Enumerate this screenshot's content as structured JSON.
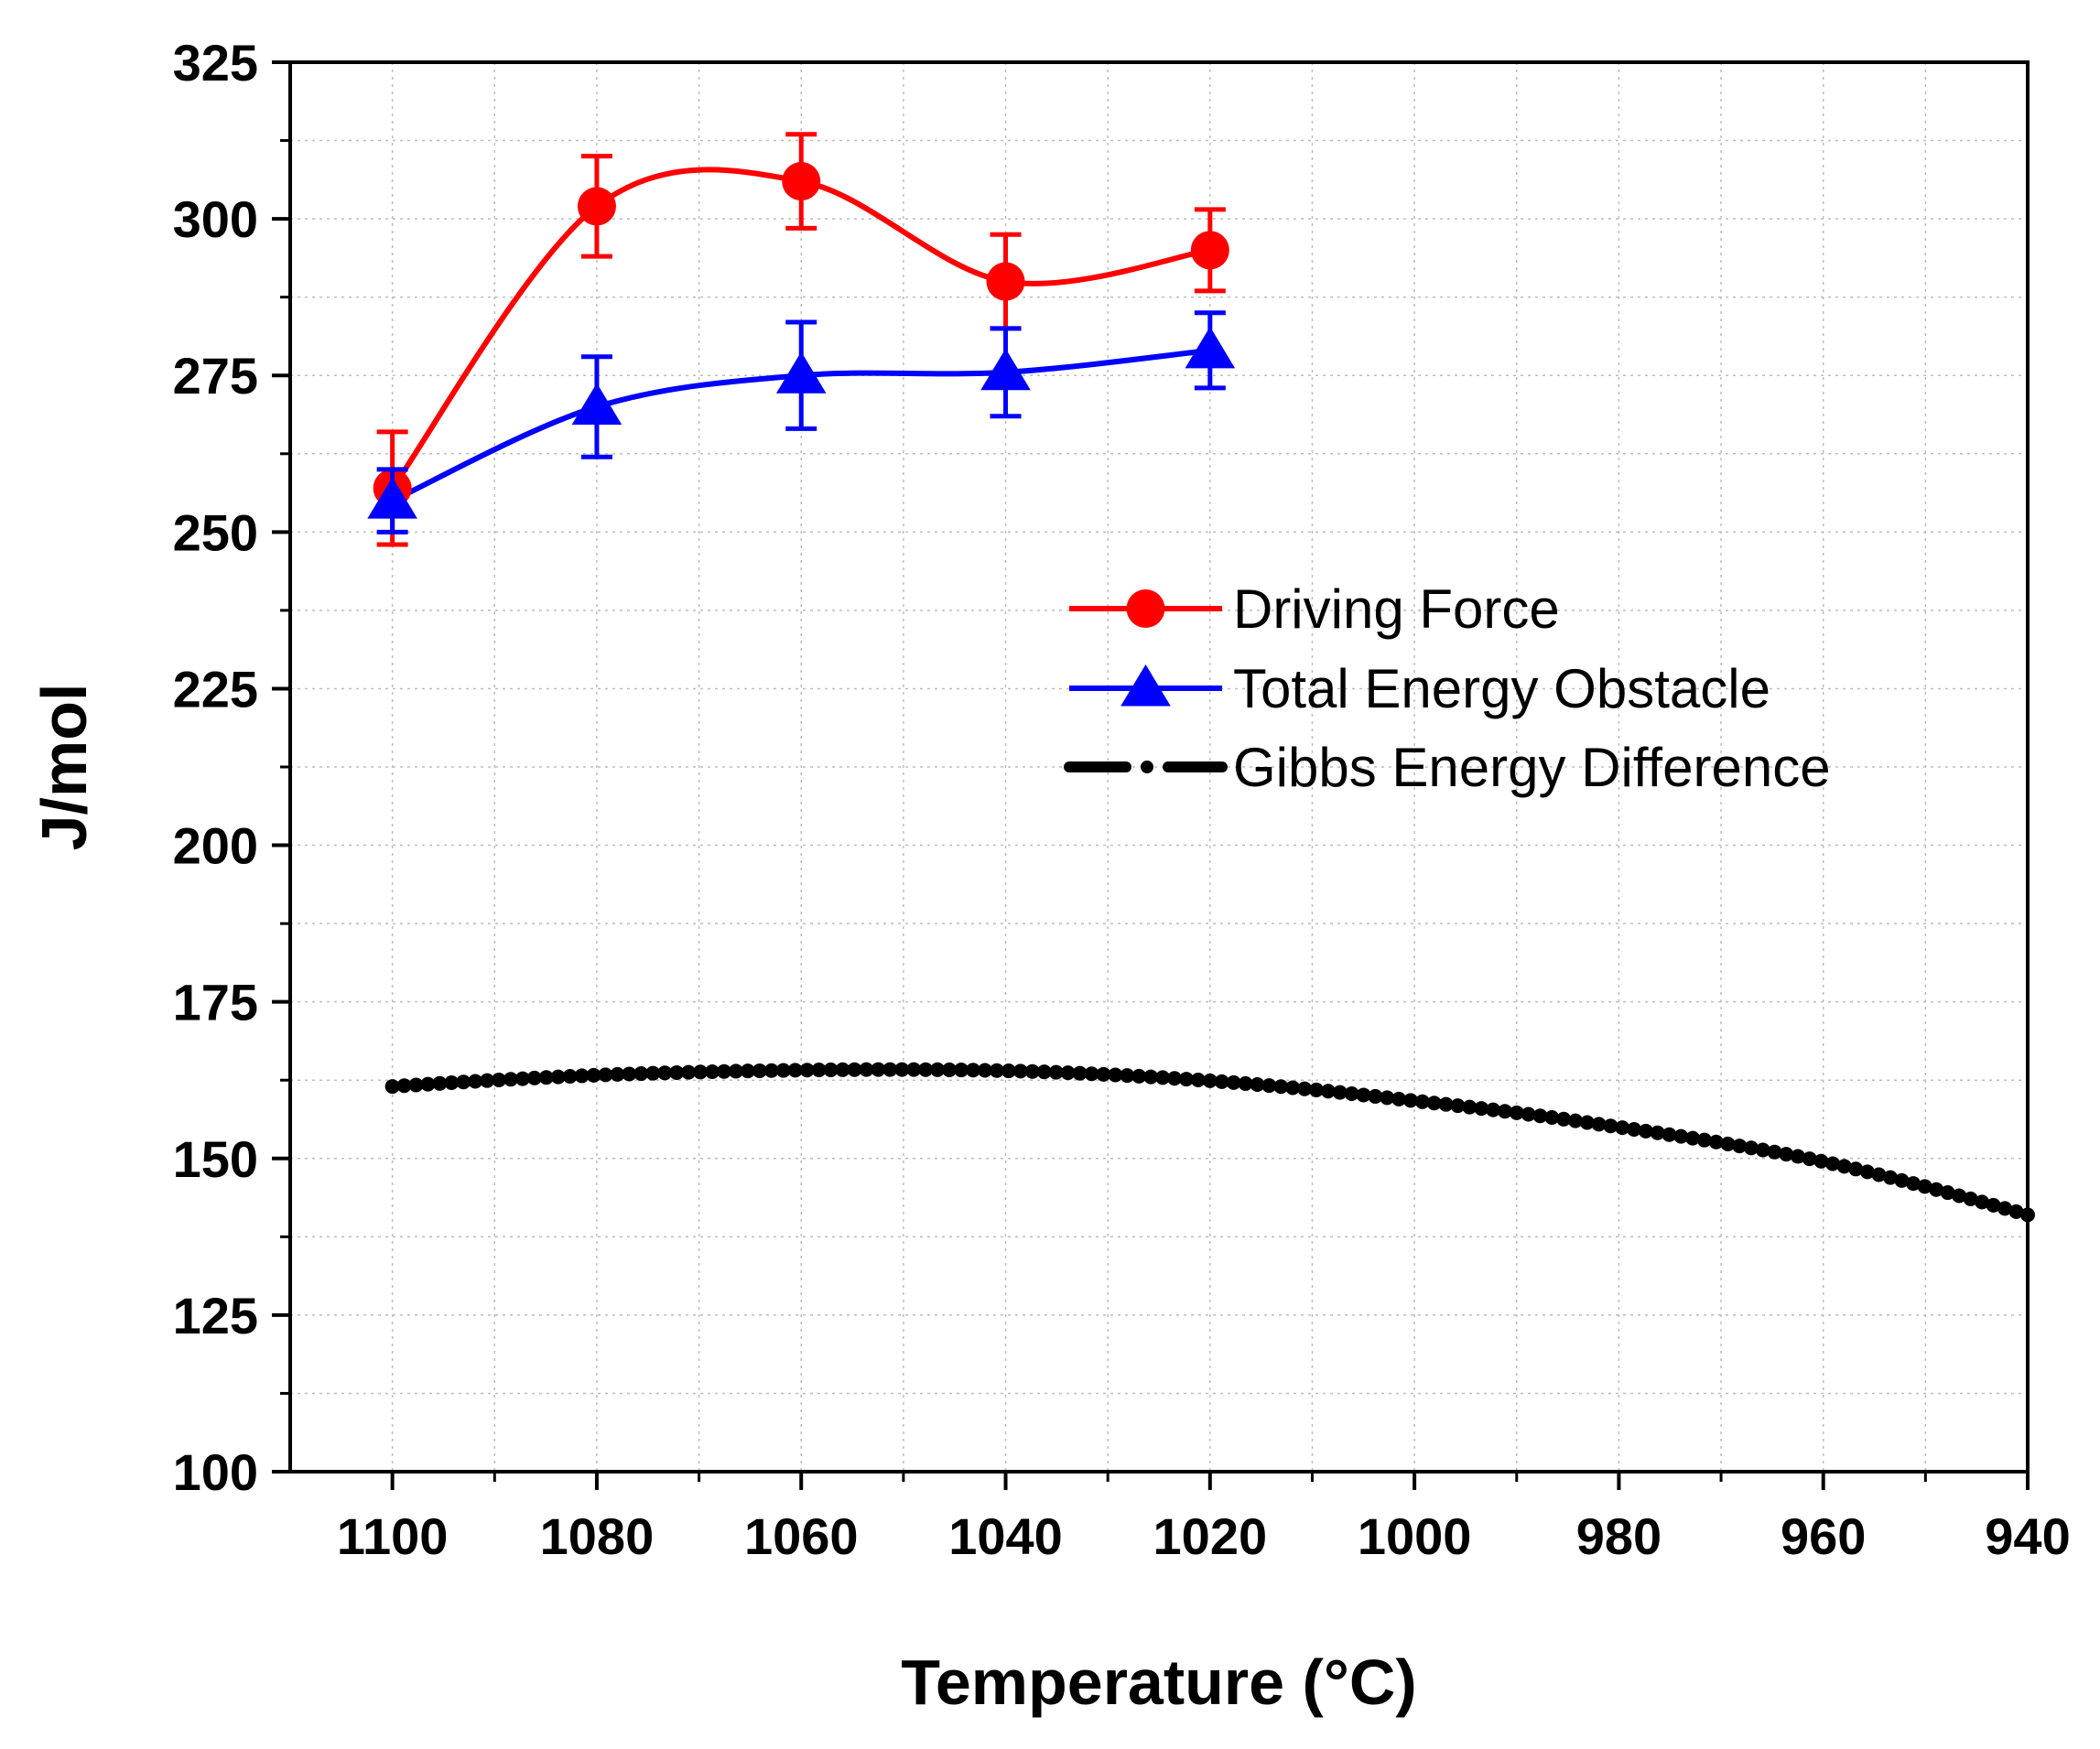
{
  "chart_data": {
    "type": "line",
    "title": "",
    "xlabel": "Temperature (°C)",
    "ylabel": "J/mol",
    "xlim": [
      1110,
      940
    ],
    "ylim": [
      100,
      325
    ],
    "x_reversed": true,
    "xticks": [
      1100,
      1080,
      1060,
      1040,
      1020,
      1000,
      980,
      960,
      940
    ],
    "yticks": [
      100,
      125,
      150,
      175,
      200,
      225,
      250,
      275,
      300,
      325
    ],
    "grid": true,
    "legend_position": "center-right",
    "series": [
      {
        "name": "Driving Force",
        "color": "#ff0000",
        "marker": "circle",
        "smooth": true,
        "x": [
          1100,
          1080,
          1060,
          1040,
          1020
        ],
        "values": [
          257,
          302,
          306,
          290,
          295
        ],
        "error": [
          9,
          8,
          7.5,
          7.5,
          6.5
        ]
      },
      {
        "name": "Total Energy Obstacle",
        "color": "#0000ff",
        "marker": "triangle",
        "smooth": true,
        "x": [
          1100,
          1080,
          1060,
          1040,
          1020
        ],
        "values": [
          255,
          270,
          275,
          275.5,
          279
        ],
        "error": [
          5,
          8,
          8.5,
          7,
          6
        ]
      },
      {
        "name": "Gibbs Energy Difference",
        "color": "#000000",
        "marker": "dot",
        "line_style": "dash-dot",
        "x": [
          1100,
          1090,
          1080,
          1070,
          1060,
          1050,
          1040,
          1030,
          1020,
          1010,
          1000,
          990,
          980,
          970,
          960,
          950,
          940
        ],
        "values": [
          161.5,
          162.5,
          163.3,
          163.8,
          164.1,
          164.2,
          164.0,
          163.4,
          162.4,
          161.0,
          159.2,
          157.3,
          155.0,
          152.5,
          149.5,
          145.5,
          141.0
        ]
      }
    ]
  }
}
